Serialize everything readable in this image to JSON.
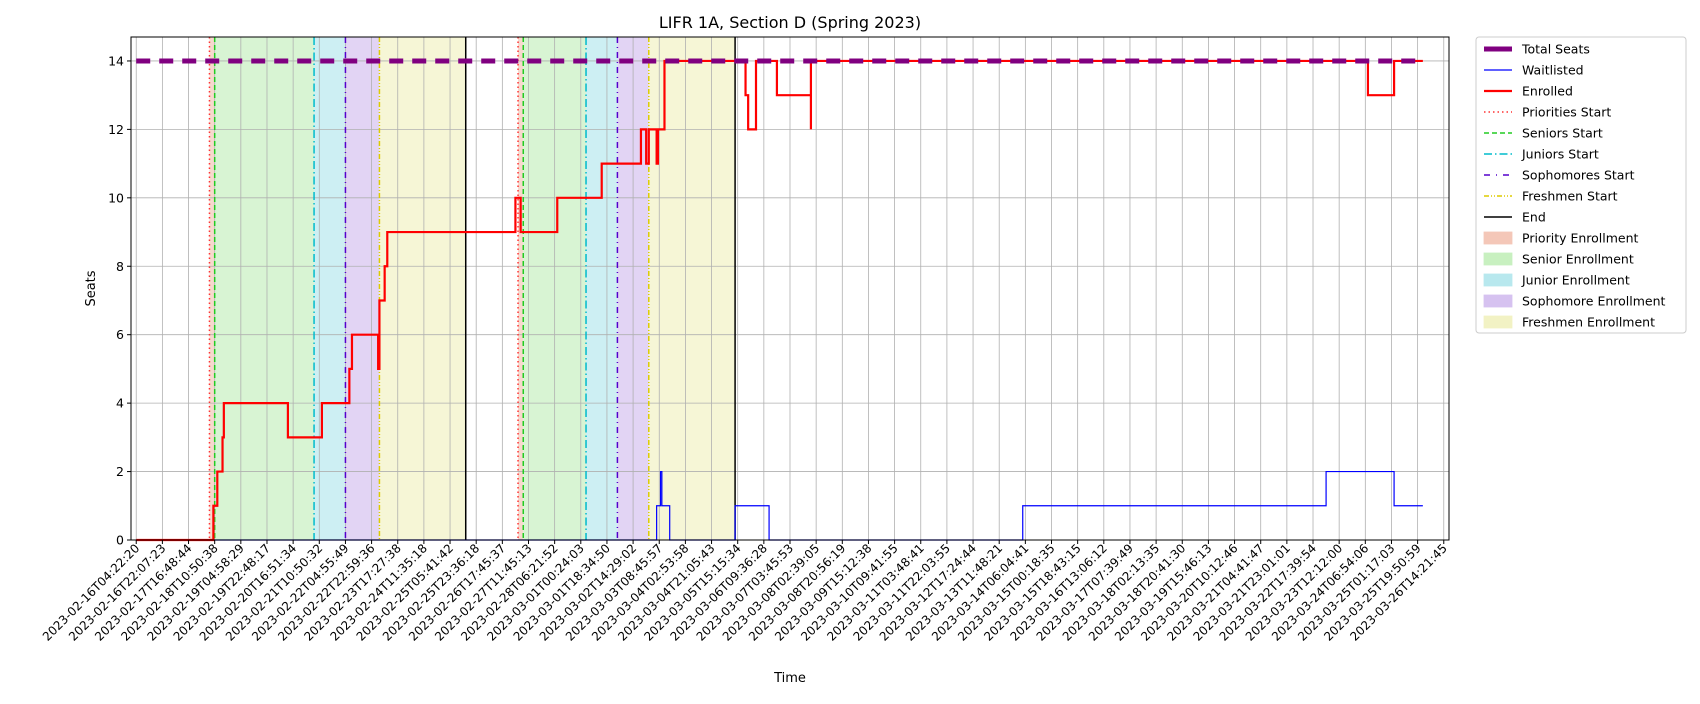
{
  "chart_data": {
    "type": "line",
    "title": "LIFR 1A, Section D (Spring 2023)",
    "xlabel": "Time",
    "ylabel": "Seats",
    "xlim": [
      "2023-02-16T04:22:20",
      "2023-03-26T14:21:45"
    ],
    "ylim": [
      0,
      14.7
    ],
    "yticks": [
      0,
      2,
      4,
      6,
      8,
      10,
      12,
      14
    ],
    "xticks": [
      "2023-02-16T04:22:20",
      "2023-02-16T22:07:23",
      "2023-02-17T16:48:44",
      "2023-02-18T10:50:38",
      "2023-02-19T04:58:29",
      "2023-02-19T22:48:17",
      "2023-02-20T16:51:34",
      "2023-02-21T10:50:32",
      "2023-02-22T04:55:49",
      "2023-02-22T22:59:36",
      "2023-02-23T17:27:38",
      "2023-02-24T11:35:18",
      "2023-02-25T05:41:42",
      "2023-02-25T23:36:18",
      "2023-02-26T17:45:37",
      "2023-02-27T11:45:13",
      "2023-02-28T06:21:52",
      "2023-03-01T00:24:03",
      "2023-03-01T18:34:50",
      "2023-03-02T14:29:02",
      "2023-03-03T08:45:57",
      "2023-03-04T02:53:58",
      "2023-03-04T21:05:43",
      "2023-03-05T15:15:34",
      "2023-03-06T09:36:28",
      "2023-03-07T03:45:53",
      "2023-03-08T02:39:05",
      "2023-03-08T20:56:19",
      "2023-03-09T15:12:38",
      "2023-03-10T09:41:55",
      "2023-03-11T03:48:41",
      "2023-03-11T22:03:55",
      "2023-03-12T17:24:44",
      "2023-03-13T11:48:21",
      "2023-03-14T06:04:41",
      "2023-03-15T00:18:35",
      "2023-03-15T18:43:15",
      "2023-03-16T13:06:12",
      "2023-03-17T07:39:49",
      "2023-03-18T02:13:35",
      "2023-03-18T20:41:30",
      "2023-03-19T15:46:13",
      "2023-03-20T10:12:46",
      "2023-03-21T04:41:47",
      "2023-03-21T23:01:01",
      "2023-03-22T17:39:54",
      "2023-03-23T12:12:00",
      "2023-03-24T06:54:06",
      "2023-03-25T01:17:03",
      "2023-03-25T19:50:59",
      "2023-03-26T14:21:45"
    ],
    "grid": true,
    "legend_position": "outside-right",
    "colors": {
      "total": "#800080",
      "waitlisted": "#0000ff",
      "enrolled": "#ff0000",
      "priorities": "#ff3333",
      "seniors": "#22cc22",
      "juniors": "#00bbcc",
      "sophomores": "#5500cc",
      "freshmen": "#ddcc00",
      "end": "#000000",
      "priority_fill": "#f4c7b8",
      "senior_fill": "#c8f0c0",
      "junior_fill": "#b8e8ee",
      "sophomore_fill": "#d6c2f0",
      "freshmen_fill": "#f2f2c4"
    },
    "legend": [
      "Total Seats",
      "Waitlisted",
      "Enrolled",
      "Priorities Start",
      "Seniors Start",
      "Juniors Start",
      "Sophomores Start",
      "Freshmen Start",
      "End",
      "Priority Enrollment",
      "Senior Enrollment",
      "Junior Enrollment",
      "Sophomore Enrollment",
      "Freshmen Enrollment"
    ],
    "enrollment_periods": [
      {
        "priorities_start": 2.8,
        "seniors_start": 3.0,
        "juniors_start": 6.8,
        "sophomores_start": 8.0,
        "freshmen_start": 9.3,
        "end": 12.6
      },
      {
        "priorities_start": 14.6,
        "seniors_start": 14.8,
        "juniors_start": 17.2,
        "sophomores_start": 18.4,
        "freshmen_start": 19.6,
        "end": 22.9
      }
    ],
    "series": [
      {
        "name": "Total Seats",
        "points": [
          [
            0,
            14
          ],
          [
            49.2,
            14
          ]
        ]
      },
      {
        "name": "Enrolled",
        "points": [
          [
            0,
            0
          ],
          [
            2.95,
            0
          ],
          [
            2.95,
            1
          ],
          [
            3.1,
            1
          ],
          [
            3.1,
            2
          ],
          [
            3.3,
            2
          ],
          [
            3.3,
            3
          ],
          [
            3.35,
            3
          ],
          [
            3.35,
            4
          ],
          [
            5.8,
            4
          ],
          [
            5.8,
            3
          ],
          [
            7.1,
            3
          ],
          [
            7.1,
            4
          ],
          [
            8.15,
            4
          ],
          [
            8.15,
            5
          ],
          [
            8.25,
            5
          ],
          [
            8.25,
            6
          ],
          [
            9.25,
            6
          ],
          [
            9.25,
            5
          ],
          [
            9.3,
            5
          ],
          [
            9.3,
            7
          ],
          [
            9.5,
            7
          ],
          [
            9.5,
            8
          ],
          [
            9.6,
            8
          ],
          [
            9.6,
            9
          ],
          [
            14.5,
            9
          ],
          [
            14.5,
            10
          ],
          [
            14.7,
            10
          ],
          [
            14.7,
            9
          ],
          [
            16.1,
            9
          ],
          [
            16.1,
            10
          ],
          [
            17.8,
            10
          ],
          [
            17.8,
            11
          ],
          [
            19.3,
            11
          ],
          [
            19.3,
            12
          ],
          [
            19.5,
            12
          ],
          [
            19.5,
            11
          ],
          [
            19.6,
            11
          ],
          [
            19.6,
            12
          ],
          [
            19.9,
            12
          ],
          [
            19.9,
            11
          ],
          [
            19.95,
            11
          ],
          [
            19.95,
            12
          ],
          [
            20.2,
            12
          ],
          [
            20.2,
            14
          ],
          [
            23.3,
            14
          ],
          [
            23.3,
            13
          ],
          [
            23.4,
            13
          ],
          [
            23.4,
            12
          ],
          [
            23.7,
            12
          ],
          [
            23.7,
            14
          ],
          [
            24.5,
            14
          ],
          [
            24.5,
            13
          ],
          [
            25.8,
            13
          ],
          [
            25.8,
            12
          ],
          [
            25.8,
            14
          ],
          [
            47.1,
            14
          ],
          [
            47.1,
            13
          ],
          [
            48.1,
            13
          ],
          [
            48.1,
            14
          ],
          [
            49.2,
            14
          ]
        ]
      },
      {
        "name": "Waitlisted",
        "points": [
          [
            0,
            0
          ],
          [
            19.9,
            0
          ],
          [
            19.9,
            1
          ],
          [
            20.05,
            1
          ],
          [
            20.05,
            2
          ],
          [
            20.1,
            2
          ],
          [
            20.1,
            1
          ],
          [
            20.4,
            1
          ],
          [
            20.4,
            0
          ],
          [
            22.9,
            0
          ],
          [
            22.9,
            1
          ],
          [
            24.2,
            1
          ],
          [
            24.2,
            0
          ],
          [
            33.9,
            0
          ],
          [
            33.9,
            1
          ],
          [
            45.5,
            1
          ],
          [
            45.5,
            2
          ],
          [
            48.1,
            2
          ],
          [
            48.1,
            1
          ],
          [
            49.2,
            1
          ]
        ]
      }
    ]
  }
}
